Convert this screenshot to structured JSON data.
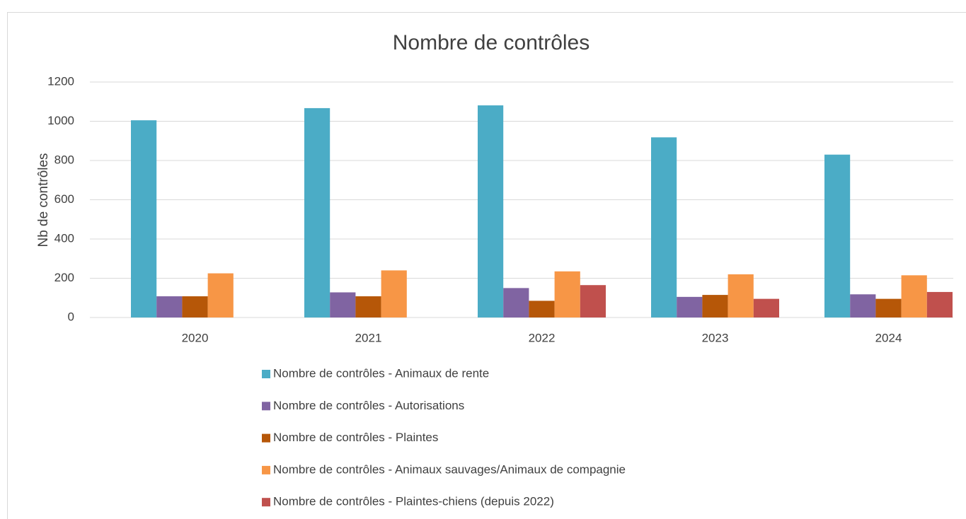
{
  "chart_data": {
    "type": "bar",
    "title": "Nombre de contrôles",
    "y_label": "Nb de contrôles",
    "categories": [
      "2020",
      "2021",
      "2022",
      "2023",
      "2024"
    ],
    "series": [
      {
        "name": "Nombre de contrôles - Animaux de rente",
        "color": "#4bacc6",
        "values": [
          1005,
          1067,
          1081,
          918,
          830
        ]
      },
      {
        "name": "Nombre de contrôles - Autorisations",
        "color": "#8064a2",
        "values": [
          108,
          128,
          150,
          105,
          118
        ]
      },
      {
        "name": "Nombre de contrôles - Plaintes",
        "color": "#b65708",
        "values": [
          108,
          108,
          85,
          115,
          95
        ]
      },
      {
        "name": "Nombre de contrôles - Animaux sauvages/Animaux de compagnie",
        "color": "#f79646",
        "values": [
          225,
          240,
          235,
          220,
          215
        ]
      },
      {
        "name": "Nombre de contrôles - Plaintes-chiens (depuis 2022)",
        "color": "#c0504d",
        "values": [
          null,
          null,
          165,
          95,
          130
        ]
      }
    ],
    "ylim": [
      0,
      1200
    ],
    "yticks": [
      0,
      200,
      400,
      600,
      800,
      1000,
      1200
    ],
    "grid": true
  }
}
